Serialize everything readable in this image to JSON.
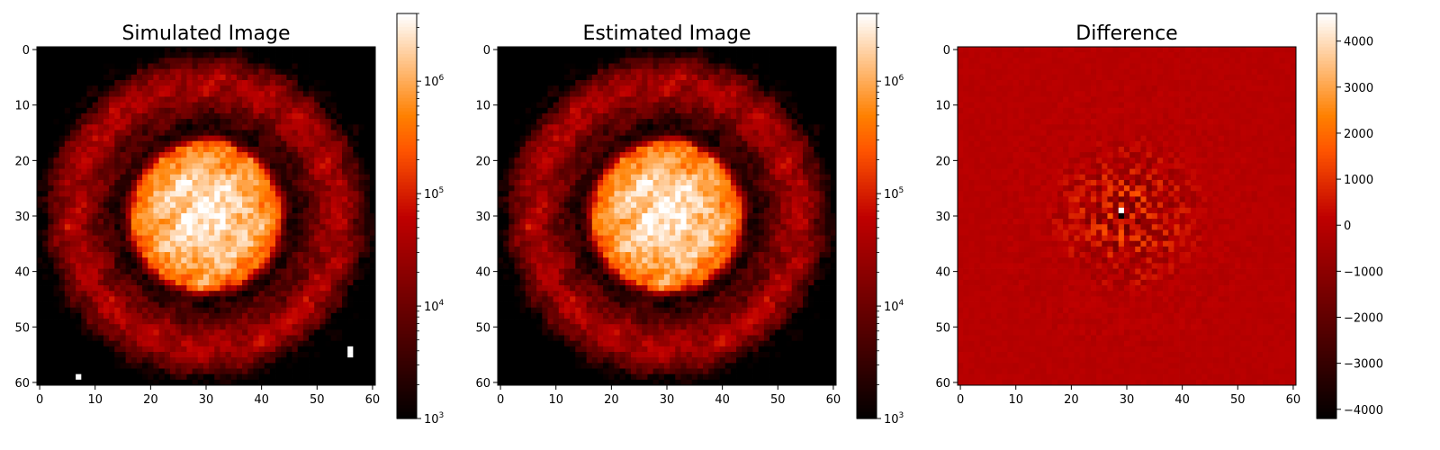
{
  "chart_data": [
    {
      "type": "heatmap",
      "title": "Simulated Image",
      "grid_size": [
        61,
        61
      ],
      "x_ticks": [
        "0",
        "10",
        "20",
        "30",
        "40",
        "50",
        "60"
      ],
      "y_ticks": [
        "0",
        "10",
        "20",
        "30",
        "40",
        "50",
        "60"
      ],
      "xlim": [
        0,
        60
      ],
      "ylim": [
        60,
        0
      ],
      "colormap": "gist_heat",
      "color_scale": "log",
      "color_range": [
        1000,
        4000000
      ],
      "colorbar_ticks": [
        {
          "base": "10",
          "exp": "3"
        },
        {
          "base": "10",
          "exp": "4"
        },
        {
          "base": "10",
          "exp": "5"
        },
        {
          "base": "10",
          "exp": "6"
        }
      ],
      "colorbar_tick_values": [
        1000,
        10000,
        100000,
        1000000
      ],
      "peak_value": 3000000,
      "central_disk_radius": 13,
      "dark_ring_radius": 15,
      "outer_ring_center_radius": 23,
      "saturated_pixels": [
        [
          7,
          59
        ],
        [
          56,
          54
        ],
        [
          56,
          55
        ]
      ],
      "grid": false
    },
    {
      "type": "heatmap",
      "title": "Estimated Image",
      "grid_size": [
        61,
        61
      ],
      "x_ticks": [
        "0",
        "10",
        "20",
        "30",
        "40",
        "50",
        "60"
      ],
      "y_ticks": [
        "0",
        "10",
        "20",
        "30",
        "40",
        "50",
        "60"
      ],
      "xlim": [
        0,
        60
      ],
      "ylim": [
        60,
        0
      ],
      "colormap": "gist_heat",
      "color_scale": "log",
      "color_range": [
        1000,
        4000000
      ],
      "colorbar_ticks": [
        {
          "base": "10",
          "exp": "3"
        },
        {
          "base": "10",
          "exp": "4"
        },
        {
          "base": "10",
          "exp": "5"
        },
        {
          "base": "10",
          "exp": "6"
        }
      ],
      "colorbar_tick_values": [
        1000,
        10000,
        100000,
        1000000
      ],
      "peak_value": 3000000,
      "central_disk_radius": 13,
      "dark_ring_radius": 15,
      "outer_ring_center_radius": 23,
      "grid": false
    },
    {
      "type": "heatmap",
      "title": "Difference",
      "grid_size": [
        61,
        61
      ],
      "x_ticks": [
        "0",
        "10",
        "20",
        "30",
        "40",
        "50",
        "60"
      ],
      "y_ticks": [
        "0",
        "10",
        "20",
        "30",
        "40",
        "50",
        "60"
      ],
      "xlim": [
        0,
        60
      ],
      "ylim": [
        60,
        0
      ],
      "colormap": "gist_heat",
      "color_scale": "linear",
      "color_range": [
        -4200,
        4600
      ],
      "colorbar_ticks": [
        "4000",
        "3000",
        "2000",
        "1000",
        "0",
        "−1000",
        "−2000",
        "−3000",
        "−4000"
      ],
      "colorbar_tick_values": [
        4000,
        3000,
        2000,
        1000,
        0,
        -1000,
        -2000,
        -3000,
        -4000
      ],
      "background_value": 0,
      "max_pixel": {
        "x": 29,
        "y": 29,
        "value": 4600
      },
      "min_pixel": {
        "x": 29,
        "y": 30,
        "value": -4200
      },
      "grid": false
    }
  ]
}
